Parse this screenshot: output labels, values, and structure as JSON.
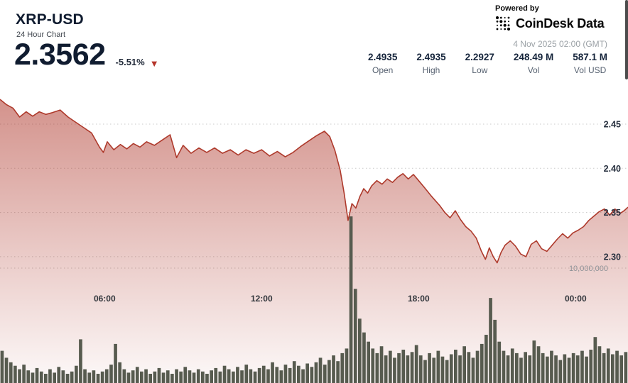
{
  "header": {
    "symbol": "XRP-USD",
    "subtitle": "24 Hour Chart",
    "price": "2.3562",
    "change": "-5.51%",
    "down_arrow": "▼",
    "powered_by": "Powered by",
    "brand": "CoinDesk Data",
    "timestamp": "4 Nov 2025 02:00 (GMT)",
    "stats": [
      {
        "value": "2.4935",
        "label": "Open"
      },
      {
        "value": "2.4935",
        "label": "High"
      },
      {
        "value": "2.2927",
        "label": "Low"
      },
      {
        "value": "248.49 M",
        "label": "Vol"
      },
      {
        "value": "587.1 M",
        "label": "Vol USD"
      }
    ]
  },
  "colors": {
    "text_dark": "#101c30",
    "accent_red": "#b5342a",
    "muted_gray": "#9ba1a6"
  },
  "chart_data": {
    "type": "area",
    "title": "XRP-USD 24 Hour Chart",
    "subtitle_note": "price line with volume bars, 24h ending 4 Nov 2025 02:00 GMT",
    "x_unit": "hours elapsed since start of 24h window",
    "x_range": [
      0,
      24
    ],
    "x_ticks": [
      {
        "h": 4,
        "label": "06:00"
      },
      {
        "h": 10,
        "label": "12:00"
      },
      {
        "h": 16,
        "label": "18:00"
      },
      {
        "h": 22,
        "label": "00:00"
      }
    ],
    "y_axis": {
      "ticks": [
        2.45,
        2.4,
        2.35,
        2.3
      ],
      "range": [
        2.268,
        2.503
      ],
      "position": "right"
    },
    "volume_axis": {
      "tick_label": "10,000,000",
      "tick_value": 10000000
    },
    "grid": "dotted-horizontal",
    "legend": "none",
    "open": 2.4935,
    "high": 2.4935,
    "low": 2.2927,
    "last": 2.3562,
    "change_pct": -5.51,
    "volume_total": "248.49 M",
    "volume_usd_total": "587.1 M",
    "line_color": "#ae3a2c",
    "fill_color": "#b03a2e",
    "volume_bar_color": "#575b4f",
    "price_series": {
      "name": "XRP-USD price",
      "x_hours": [
        0,
        0.25,
        0.5,
        0.75,
        1,
        1.25,
        1.5,
        1.75,
        2,
        2.3,
        2.6,
        2.9,
        3.2,
        3.5,
        3.8,
        3.95,
        4.1,
        4.35,
        4.6,
        4.85,
        5.1,
        5.35,
        5.6,
        5.9,
        6.2,
        6.5,
        6.75,
        7,
        7.3,
        7.6,
        7.9,
        8.2,
        8.5,
        8.8,
        9.1,
        9.4,
        9.7,
        10,
        10.3,
        10.6,
        10.9,
        11.2,
        11.5,
        11.8,
        12.1,
        12.4,
        12.6,
        12.8,
        13,
        13.15,
        13.3,
        13.45,
        13.6,
        13.75,
        13.9,
        14.05,
        14.2,
        14.4,
        14.6,
        14.8,
        15,
        15.2,
        15.4,
        15.6,
        15.8,
        16,
        16.2,
        16.5,
        16.8,
        17,
        17.2,
        17.4,
        17.6,
        17.8,
        18,
        18.2,
        18.4,
        18.55,
        18.7,
        18.85,
        19,
        19.15,
        19.3,
        19.5,
        19.7,
        19.9,
        20.1,
        20.3,
        20.5,
        20.7,
        20.9,
        21.1,
        21.3,
        21.5,
        21.7,
        21.9,
        22.1,
        22.3,
        22.5,
        22.7,
        22.9,
        23.1,
        23.3,
        23.5,
        23.7,
        23.85,
        24
      ],
      "values": [
        2.478,
        2.472,
        2.468,
        2.458,
        2.464,
        2.459,
        2.464,
        2.461,
        2.463,
        2.466,
        2.458,
        2.452,
        2.446,
        2.44,
        2.424,
        2.418,
        2.43,
        2.421,
        2.427,
        2.422,
        2.428,
        2.424,
        2.43,
        2.426,
        2.432,
        2.438,
        2.412,
        2.426,
        2.417,
        2.423,
        2.418,
        2.423,
        2.417,
        2.421,
        2.415,
        2.421,
        2.417,
        2.421,
        2.414,
        2.419,
        2.413,
        2.418,
        2.425,
        2.431,
        2.437,
        2.442,
        2.436,
        2.42,
        2.398,
        2.372,
        2.341,
        2.36,
        2.355,
        2.368,
        2.377,
        2.372,
        2.38,
        2.386,
        2.382,
        2.388,
        2.384,
        2.39,
        2.394,
        2.388,
        2.393,
        2.386,
        2.379,
        2.368,
        2.358,
        2.35,
        2.344,
        2.352,
        2.342,
        2.334,
        2.329,
        2.321,
        2.306,
        2.297,
        2.31,
        2.3,
        2.293,
        2.305,
        2.313,
        2.318,
        2.312,
        2.303,
        2.3,
        2.314,
        2.318,
        2.309,
        2.306,
        2.313,
        2.32,
        2.326,
        2.321,
        2.327,
        2.33,
        2.334,
        2.341,
        2.346,
        2.351,
        2.354,
        2.347,
        2.354,
        2.349,
        2.352,
        2.356
      ]
    },
    "volume_series": {
      "name": "Volume",
      "interval_minutes": 10,
      "values_millions": [
        2.8,
        2.2,
        1.8,
        1.5,
        1.2,
        1.6,
        1.1,
        0.9,
        1.3,
        1.0,
        0.8,
        1.2,
        0.9,
        1.4,
        1.1,
        0.8,
        1.0,
        1.5,
        3.8,
        1.2,
        0.9,
        1.1,
        0.8,
        1.0,
        1.2,
        1.6,
        3.4,
        1.8,
        1.2,
        0.9,
        1.1,
        1.4,
        1.0,
        1.2,
        0.8,
        1.0,
        1.3,
        0.9,
        1.1,
        0.8,
        1.2,
        1.0,
        1.4,
        1.1,
        0.9,
        1.2,
        1.0,
        0.8,
        1.1,
        1.3,
        1.0,
        1.5,
        1.2,
        1.0,
        1.4,
        1.1,
        1.6,
        1.2,
        1.0,
        1.3,
        1.5,
        1.2,
        1.8,
        1.4,
        1.1,
        1.6,
        1.3,
        1.9,
        1.5,
        1.2,
        1.7,
        1.4,
        1.8,
        2.2,
        1.6,
        2.0,
        2.4,
        1.9,
        2.6,
        3.0,
        14.5,
        8.2,
        5.6,
        4.4,
        3.6,
        3.0,
        2.6,
        3.2,
        2.4,
        2.8,
        2.2,
        2.6,
        2.9,
        2.4,
        2.7,
        3.3,
        2.4,
        2.0,
        2.6,
        2.2,
        2.8,
        2.3,
        2.0,
        2.5,
        2.9,
        2.4,
        3.2,
        2.7,
        2.2,
        2.8,
        3.4,
        4.2,
        7.4,
        5.5,
        3.6,
        2.8,
        2.4,
        3.0,
        2.6,
        2.2,
        2.7,
        2.4,
        3.7,
        3.2,
        2.6,
        2.3,
        2.8,
        2.4,
        2.0,
        2.5,
        2.2,
        2.6,
        2.4,
        2.8,
        2.3,
        2.9,
        4.0,
        3.2,
        2.6,
        3.0,
        2.5,
        2.8,
        2.4,
        2.7
      ]
    }
  }
}
